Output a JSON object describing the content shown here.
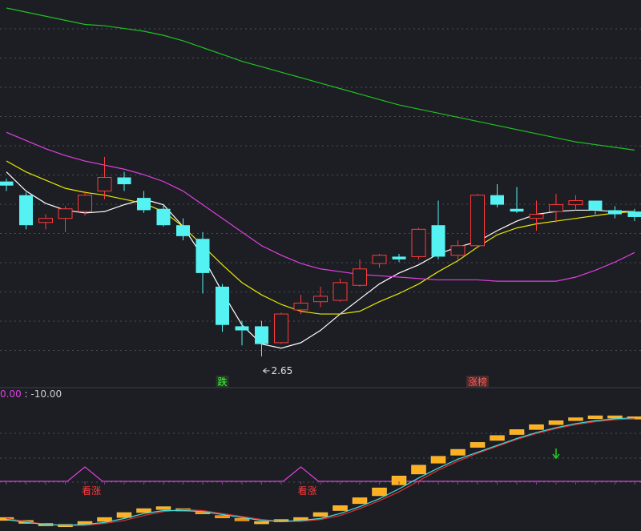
{
  "chart_data": [
    {
      "type": "candlestick",
      "panel": "main",
      "ylim": [
        2.55,
        5.2
      ],
      "grid": true,
      "min_annotation": {
        "value": 2.65,
        "label": "2.65",
        "candle_index": 13
      },
      "signals": [
        {
          "candle_index": 11,
          "label": "跌",
          "color": "#3bff3b"
        },
        {
          "candle_index": 24,
          "label": "涨榜",
          "color": "#ff5b5b"
        }
      ],
      "candles": [
        {
          "o": 3.93,
          "c": 3.9,
          "h": 3.95,
          "l": 3.86
        },
        {
          "o": 3.83,
          "c": 3.61,
          "h": 3.85,
          "l": 3.58
        },
        {
          "o": 3.63,
          "c": 3.66,
          "h": 3.69,
          "l": 3.58
        },
        {
          "o": 3.66,
          "c": 3.73,
          "h": 3.75,
          "l": 3.56
        },
        {
          "o": 3.71,
          "c": 3.83,
          "h": 3.86,
          "l": 3.68
        },
        {
          "o": 3.86,
          "c": 3.96,
          "h": 4.11,
          "l": 3.8
        },
        {
          "o": 3.96,
          "c": 3.91,
          "h": 4.0,
          "l": 3.86
        },
        {
          "o": 3.81,
          "c": 3.72,
          "h": 3.86,
          "l": 3.7
        },
        {
          "o": 3.73,
          "c": 3.61,
          "h": 3.76,
          "l": 3.6
        },
        {
          "o": 3.61,
          "c": 3.53,
          "h": 3.66,
          "l": 3.5
        },
        {
          "o": 3.51,
          "c": 3.26,
          "h": 3.56,
          "l": 3.11
        },
        {
          "o": 3.16,
          "c": 2.88,
          "h": 3.18,
          "l": 2.83
        },
        {
          "o": 2.87,
          "c": 2.84,
          "h": 2.91,
          "l": 2.73
        },
        {
          "o": 2.87,
          "c": 2.74,
          "h": 2.91,
          "l": 2.65
        },
        {
          "o": 2.75,
          "c": 2.96,
          "h": 2.97,
          "l": 2.74
        },
        {
          "o": 2.99,
          "c": 3.04,
          "h": 3.1,
          "l": 2.96
        },
        {
          "o": 3.05,
          "c": 3.09,
          "h": 3.16,
          "l": 3.01
        },
        {
          "o": 3.06,
          "c": 3.19,
          "h": 3.22,
          "l": 3.05
        },
        {
          "o": 3.17,
          "c": 3.29,
          "h": 3.36,
          "l": 3.16
        },
        {
          "o": 3.33,
          "c": 3.39,
          "h": 3.4,
          "l": 3.3
        },
        {
          "o": 3.38,
          "c": 3.36,
          "h": 3.4,
          "l": 3.34
        },
        {
          "o": 3.38,
          "c": 3.58,
          "h": 3.59,
          "l": 3.36
        },
        {
          "o": 3.61,
          "c": 3.38,
          "h": 3.79,
          "l": 3.36
        },
        {
          "o": 3.39,
          "c": 3.46,
          "h": 3.5,
          "l": 3.36
        },
        {
          "o": 3.46,
          "c": 3.83,
          "h": 3.84,
          "l": 3.45
        },
        {
          "o": 3.83,
          "c": 3.76,
          "h": 3.91,
          "l": 3.74
        },
        {
          "o": 3.73,
          "c": 3.71,
          "h": 3.89,
          "l": 3.7
        },
        {
          "o": 3.66,
          "c": 3.69,
          "h": 3.79,
          "l": 3.57
        },
        {
          "o": 3.71,
          "c": 3.76,
          "h": 3.84,
          "l": 3.63
        },
        {
          "o": 3.76,
          "c": 3.79,
          "h": 3.83,
          "l": 3.72
        },
        {
          "o": 3.79,
          "c": 3.72,
          "h": 3.79,
          "l": 3.69
        },
        {
          "o": 3.72,
          "c": 3.69,
          "h": 3.75,
          "l": 3.66
        },
        {
          "o": 3.71,
          "c": 3.67,
          "h": 3.73,
          "l": 3.64
        }
      ],
      "ma_lines": [
        {
          "color": "#ffffff",
          "values": [
            4.0,
            3.86,
            3.77,
            3.72,
            3.7,
            3.71,
            3.76,
            3.8,
            3.76,
            3.6,
            3.38,
            3.12,
            2.88,
            2.74,
            2.71,
            2.75,
            2.84,
            2.96,
            3.07,
            3.18,
            3.26,
            3.32,
            3.4,
            3.45,
            3.49,
            3.57,
            3.64,
            3.69,
            3.71,
            3.72,
            3.72,
            3.71,
            3.71
          ]
        },
        {
          "color": "#e8e800",
          "values": [
            4.08,
            4.0,
            3.94,
            3.88,
            3.85,
            3.83,
            3.8,
            3.77,
            3.71,
            3.6,
            3.46,
            3.32,
            3.19,
            3.1,
            3.03,
            2.98,
            2.96,
            2.96,
            2.98,
            3.05,
            3.11,
            3.18,
            3.27,
            3.35,
            3.45,
            3.54,
            3.59,
            3.62,
            3.64,
            3.66,
            3.68,
            3.7,
            3.71
          ]
        },
        {
          "color": "#e040e0",
          "values": [
            4.29,
            4.23,
            4.17,
            4.12,
            4.08,
            4.05,
            4.02,
            3.98,
            3.93,
            3.86,
            3.76,
            3.66,
            3.56,
            3.46,
            3.39,
            3.33,
            3.29,
            3.27,
            3.25,
            3.24,
            3.23,
            3.22,
            3.21,
            3.21,
            3.21,
            3.2,
            3.2,
            3.2,
            3.2,
            3.23,
            3.28,
            3.34,
            3.41
          ]
        },
        {
          "color": "#22c022",
          "values": [
            5.2,
            5.17,
            5.14,
            5.11,
            5.08,
            5.07,
            5.05,
            5.03,
            5.0,
            4.96,
            4.91,
            4.86,
            4.81,
            4.77,
            4.73,
            4.69,
            4.65,
            4.61,
            4.57,
            4.53,
            4.49,
            4.46,
            4.43,
            4.4,
            4.37,
            4.34,
            4.31,
            4.28,
            4.25,
            4.22,
            4.2,
            4.18,
            4.16
          ]
        }
      ]
    },
    {
      "type": "indicator",
      "panel": "sub",
      "title_value": "0.00",
      "title_sep": " : ",
      "title_value2": "-10.00",
      "ylim": [
        -10,
        110
      ],
      "signals": [
        {
          "index": 4,
          "label": "看涨"
        },
        {
          "index": 15,
          "label": "看涨"
        }
      ],
      "bars": [
        {
          "a": -2,
          "b": -5
        },
        {
          "a": -5,
          "b": -8
        },
        {
          "a": -8,
          "b": -10
        },
        {
          "a": -9,
          "b": -10
        },
        {
          "a": -6,
          "b": -9
        },
        {
          "a": -2,
          "b": -6
        },
        {
          "a": 3,
          "b": -2
        },
        {
          "a": 7,
          "b": 3
        },
        {
          "a": 9,
          "b": 6
        },
        {
          "a": 7,
          "b": 5
        },
        {
          "a": 3,
          "b": 4
        },
        {
          "a": -1,
          "b": 0
        },
        {
          "a": -4,
          "b": -3
        },
        {
          "a": -6,
          "b": -6
        },
        {
          "a": -4,
          "b": -6
        },
        {
          "a": -2,
          "b": -5
        },
        {
          "a": 3,
          "b": -1
        },
        {
          "a": 10,
          "b": 5
        },
        {
          "a": 18,
          "b": 12
        },
        {
          "a": 28,
          "b": 20
        },
        {
          "a": 40,
          "b": 31
        },
        {
          "a": 51,
          "b": 42
        },
        {
          "a": 60,
          "b": 53
        },
        {
          "a": 67,
          "b": 61
        },
        {
          "a": 74,
          "b": 69
        },
        {
          "a": 81,
          "b": 76
        },
        {
          "a": 87,
          "b": 82
        },
        {
          "a": 92,
          "b": 87
        },
        {
          "a": 96,
          "b": 92
        },
        {
          "a": 99,
          "b": 96
        },
        {
          "a": 101,
          "b": 98
        },
        {
          "a": 101,
          "b": 99
        },
        {
          "a": 100,
          "b": 99
        }
      ],
      "line1": {
        "color": "#40e0e0",
        "values": [
          -4,
          -7,
          -9,
          -10,
          -9,
          -7,
          -3,
          2,
          5,
          5,
          4,
          1,
          -2,
          -5,
          -6,
          -5,
          -3,
          2,
          9,
          17,
          27,
          38,
          48,
          57,
          64,
          71,
          78,
          84,
          89,
          93,
          96,
          98,
          99
        ]
      },
      "line2": {
        "color": "#e03030",
        "values": [
          -3,
          -6,
          -9,
          -10,
          -10,
          -8,
          -5,
          0,
          4,
          6,
          5,
          2,
          -1,
          -4,
          -6,
          -6,
          -4,
          0,
          7,
          15,
          24,
          35,
          46,
          55,
          63,
          70,
          77,
          83,
          88,
          92,
          95,
          97,
          98
        ]
      },
      "arrow": {
        "index": 28,
        "color": "#22d022"
      }
    }
  ]
}
